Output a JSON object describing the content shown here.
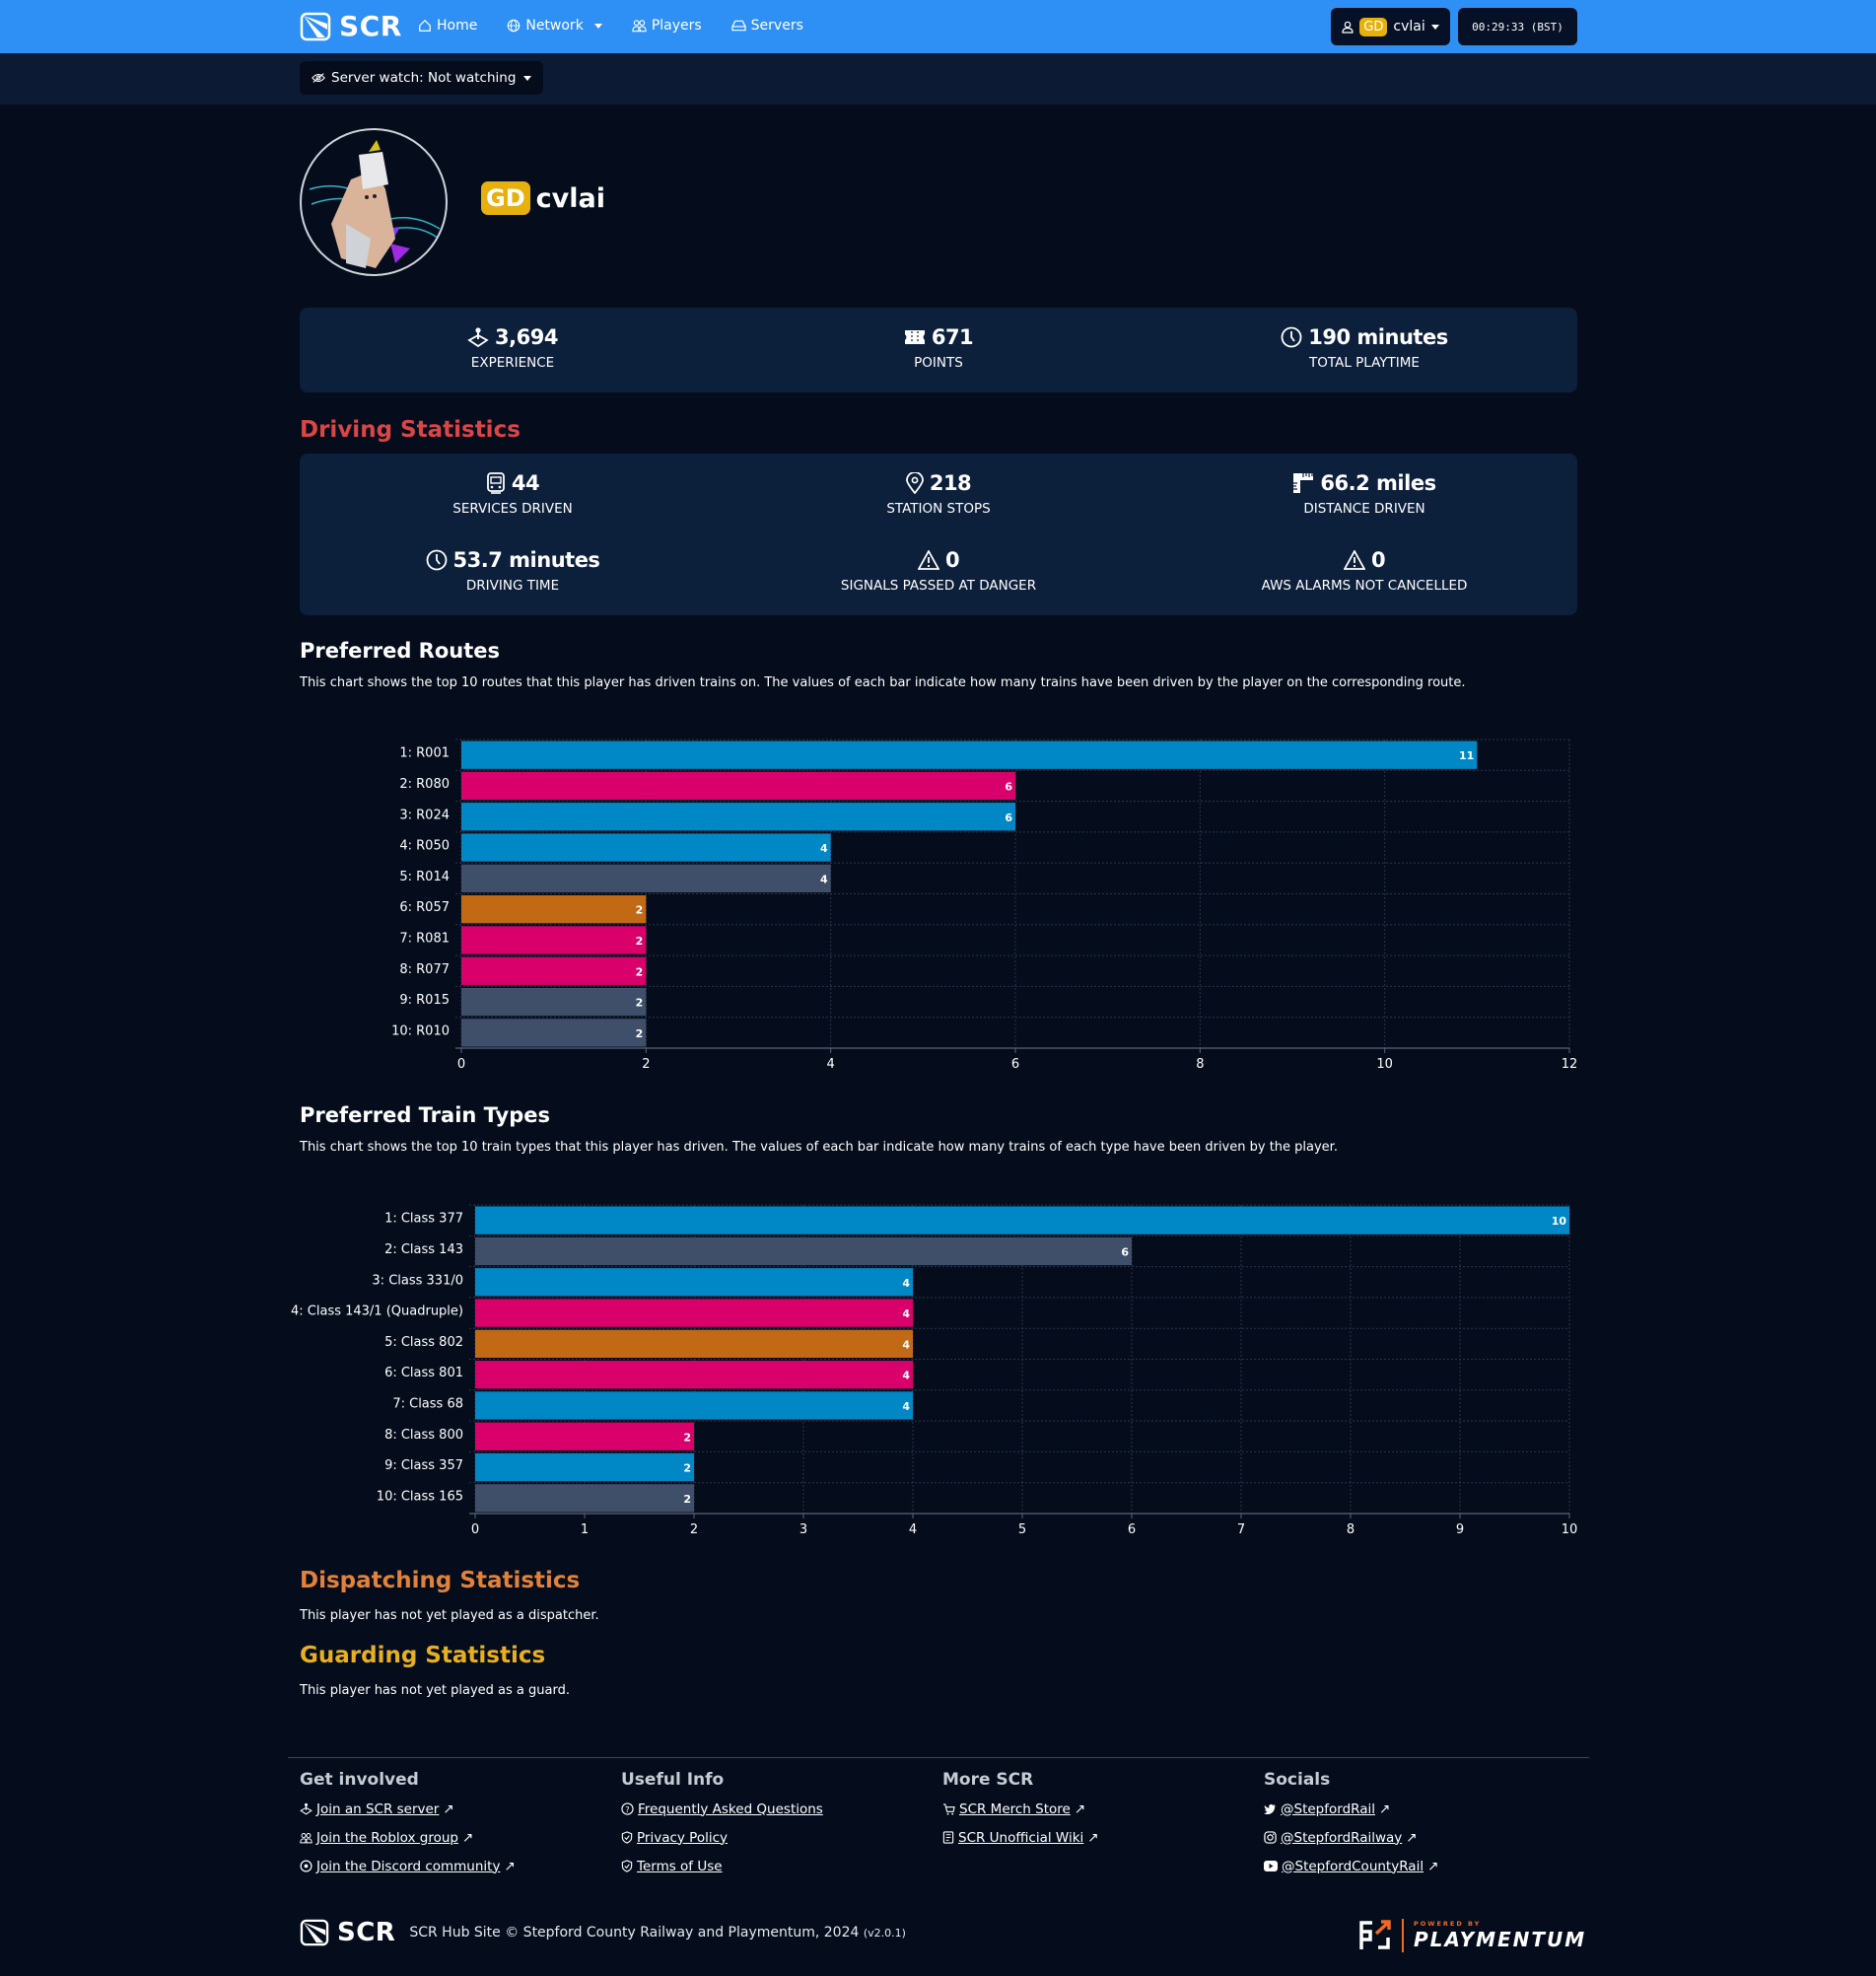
{
  "navbar": {
    "brand": "SCR",
    "links": [
      {
        "label": "Home",
        "icon": "home-icon"
      },
      {
        "label": "Network",
        "icon": "globe-icon",
        "dropdown": true
      },
      {
        "label": "Players",
        "icon": "users-icon"
      },
      {
        "label": "Servers",
        "icon": "server-icon"
      }
    ],
    "user": {
      "badge": "GD",
      "name": "cvlai"
    },
    "clock": "00:29:33 (BST)"
  },
  "subbar": {
    "server_watch": "Server watch: Not watching"
  },
  "profile": {
    "badge": "GD",
    "username": "cvlai"
  },
  "summary": [
    {
      "icon": "joystick-icon",
      "value": "3,694",
      "label": "Experience"
    },
    {
      "icon": "ticket-icon",
      "value": "671",
      "label": "Points"
    },
    {
      "icon": "clock-icon",
      "value": "190 minutes",
      "label": "Total Playtime"
    }
  ],
  "driving": {
    "title": "Driving Statistics",
    "title_color": "#dc4545",
    "stats": [
      {
        "icon": "train-icon",
        "value": "44",
        "label": "Services Driven"
      },
      {
        "icon": "map-pin-icon",
        "value": "218",
        "label": "Station Stops"
      },
      {
        "icon": "ruler-icon",
        "value": "66.2 miles",
        "label": "Distance Driven"
      },
      {
        "icon": "clock-icon",
        "value": "53.7 minutes",
        "label": "Driving Time"
      },
      {
        "icon": "warning-icon",
        "value": "0",
        "label": "Signals Passed At Danger"
      },
      {
        "icon": "warning-icon",
        "value": "0",
        "label": "AWS Alarms Not Cancelled"
      }
    ]
  },
  "routes": {
    "title": "Preferred Routes",
    "description": "This chart shows the top 10 routes that this player has driven trains on. The values of each bar indicate how many trains have been driven by the player on the corresponding route."
  },
  "trains": {
    "title": "Preferred Train Types",
    "description": "This chart shows the top 10 train types that this player has driven. The values of each bar indicate how many trains of each type have been driven by the player."
  },
  "chart_data": [
    {
      "type": "bar",
      "orientation": "horizontal",
      "title": "Preferred Routes",
      "categories": [
        "1: R001",
        "2: R080",
        "3: R024",
        "4: R050",
        "5: R014",
        "6: R057",
        "7: R081",
        "8: R077",
        "9: R015",
        "10: R010"
      ],
      "values": [
        11,
        6,
        6,
        4,
        4,
        2,
        2,
        2,
        2,
        2
      ],
      "colors": [
        "#0088c6",
        "#d9006c",
        "#0088c6",
        "#0088c6",
        "#3f4f6a",
        "#c26915",
        "#d9006c",
        "#d9006c",
        "#3f4f6a",
        "#3f4f6a"
      ],
      "xlim": [
        0,
        12
      ],
      "xticks": [
        0,
        2,
        4,
        6,
        8,
        10,
        12
      ],
      "grid": true
    },
    {
      "type": "bar",
      "orientation": "horizontal",
      "title": "Preferred Train Types",
      "categories": [
        "1: Class 377",
        "2: Class 143",
        "3: Class 331/0",
        "4: Class 143/1 (Quadruple)",
        "5: Class 802",
        "6: Class 801",
        "7: Class 68",
        "8: Class 800",
        "9: Class 357",
        "10: Class 165"
      ],
      "values": [
        10,
        6,
        4,
        4,
        4,
        4,
        4,
        2,
        2,
        2
      ],
      "colors": [
        "#0088c6",
        "#3f4f6a",
        "#0088c6",
        "#d9006c",
        "#c26915",
        "#d9006c",
        "#0088c6",
        "#d9006c",
        "#0088c6",
        "#3f4f6a"
      ],
      "xlim": [
        0,
        10
      ],
      "xticks": [
        0,
        1,
        2,
        3,
        4,
        5,
        6,
        7,
        8,
        9,
        10
      ],
      "grid": true
    }
  ],
  "dispatching": {
    "title": "Dispatching Statistics",
    "title_color": "#e0823c",
    "text": "This player has not yet played as a dispatcher."
  },
  "guarding": {
    "title": "Guarding Statistics",
    "title_color": "#e8b020",
    "text": "This player has not yet played as a guard."
  },
  "footer": {
    "columns": [
      {
        "title": "Get involved",
        "links": [
          {
            "icon": "joystick-icon",
            "label": "Join an SCR server"
          },
          {
            "icon": "users-icon",
            "label": "Join the Roblox group"
          },
          {
            "icon": "discord-icon",
            "label": "Join the Discord community"
          }
        ]
      },
      {
        "title": "Useful Info",
        "links": [
          {
            "icon": "question-icon",
            "label": "Frequently Asked Questions"
          },
          {
            "icon": "shield-icon",
            "label": "Privacy Policy"
          },
          {
            "icon": "shield-icon",
            "label": "Terms of Use"
          }
        ]
      },
      {
        "title": "More SCR",
        "links": [
          {
            "icon": "cart-icon",
            "label": "SCR Merch Store"
          },
          {
            "icon": "book-icon",
            "label": "SCR Unofficial Wiki"
          }
        ]
      },
      {
        "title": "Socials",
        "links": [
          {
            "icon": "twitter-icon",
            "label": "@StepfordRail"
          },
          {
            "icon": "instagram-icon",
            "label": "@StepfordRailway"
          },
          {
            "icon": "youtube-icon",
            "label": "@StepfordCountyRail"
          }
        ]
      }
    ],
    "brand": "SCR",
    "copyright": "SCR Hub Site © Stepford County Railway and Playmentum, 2024",
    "version": "(v2.0.1)",
    "powered_by": "POWERED BY",
    "playmentum": "PLAYMENTUM"
  }
}
